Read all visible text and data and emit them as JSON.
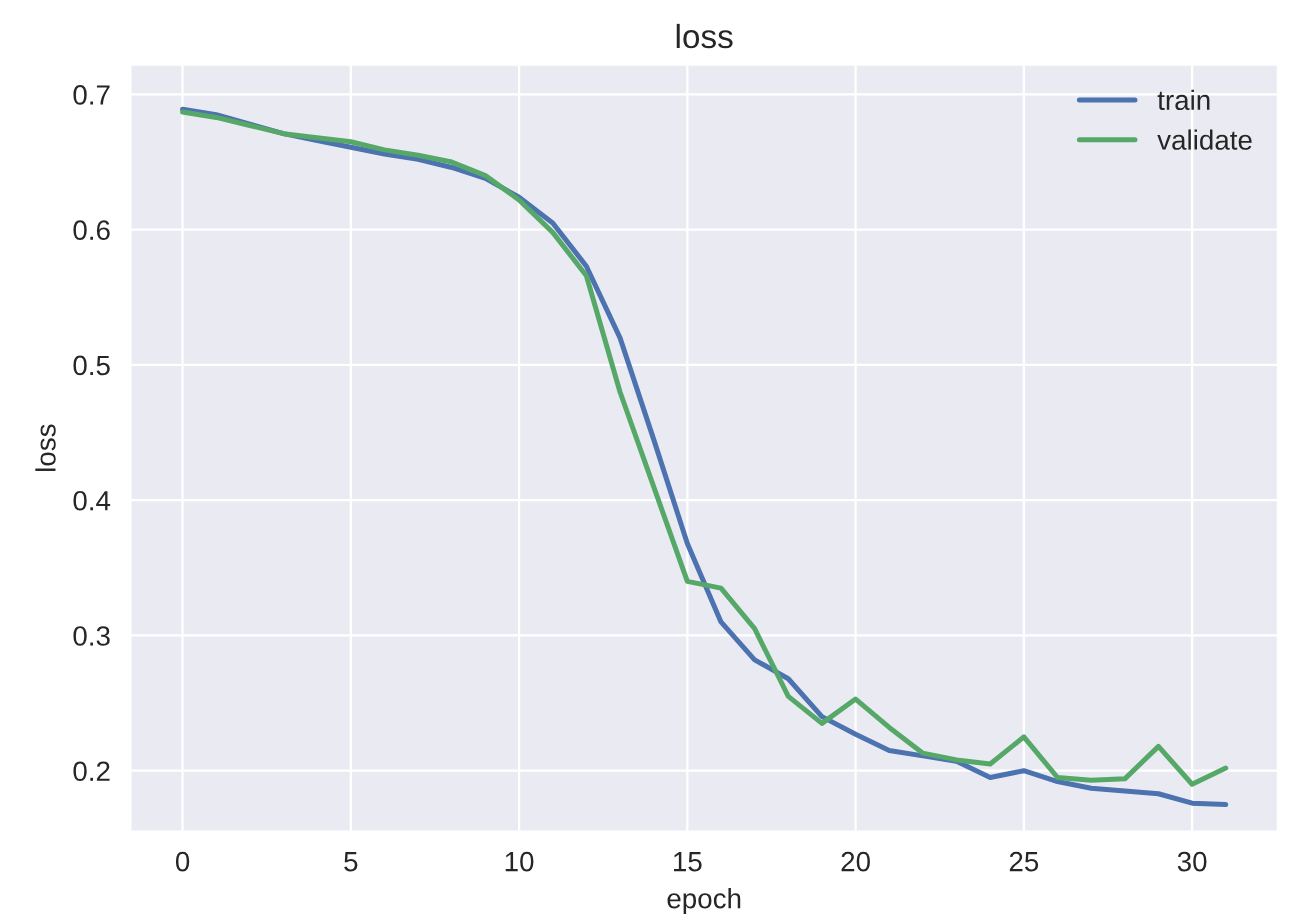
{
  "chart_data": {
    "type": "line",
    "title": "loss",
    "xlabel": "epoch",
    "ylabel": "loss",
    "x": [
      0,
      1,
      2,
      3,
      4,
      5,
      6,
      7,
      8,
      9,
      10,
      11,
      12,
      13,
      14,
      15,
      16,
      17,
      18,
      19,
      20,
      21,
      22,
      23,
      24,
      25,
      26,
      27,
      28,
      29,
      30,
      31
    ],
    "series": [
      {
        "name": "train",
        "color": "#4c72b0",
        "values": [
          0.689,
          0.685,
          0.678,
          0.671,
          0.666,
          0.661,
          0.656,
          0.652,
          0.646,
          0.638,
          0.624,
          0.605,
          0.573,
          0.52,
          0.445,
          0.368,
          0.31,
          0.282,
          0.268,
          0.24,
          0.227,
          0.215,
          0.211,
          0.207,
          0.195,
          0.2,
          0.192,
          0.187,
          0.185,
          0.183,
          0.176,
          0.175
        ]
      },
      {
        "name": "validate",
        "color": "#55a868",
        "values": [
          0.687,
          0.683,
          0.677,
          0.671,
          0.668,
          0.665,
          0.659,
          0.655,
          0.65,
          0.64,
          0.622,
          0.598,
          0.566,
          0.48,
          0.41,
          0.34,
          0.335,
          0.305,
          0.255,
          0.235,
          0.253,
          0.232,
          0.213,
          0.208,
          0.205,
          0.225,
          0.195,
          0.193,
          0.194,
          0.218,
          0.19,
          0.202
        ]
      }
    ],
    "xlim": [
      -1.55,
      32.55
    ],
    "ylim": [
      0.155,
      0.722
    ],
    "xticks": [
      0,
      5,
      10,
      15,
      20,
      25,
      30
    ],
    "yticks": [
      0.2,
      0.3,
      0.4,
      0.5,
      0.6,
      0.7
    ],
    "grid": true,
    "legend": "top right",
    "marker": "none",
    "line_style": "solid"
  }
}
